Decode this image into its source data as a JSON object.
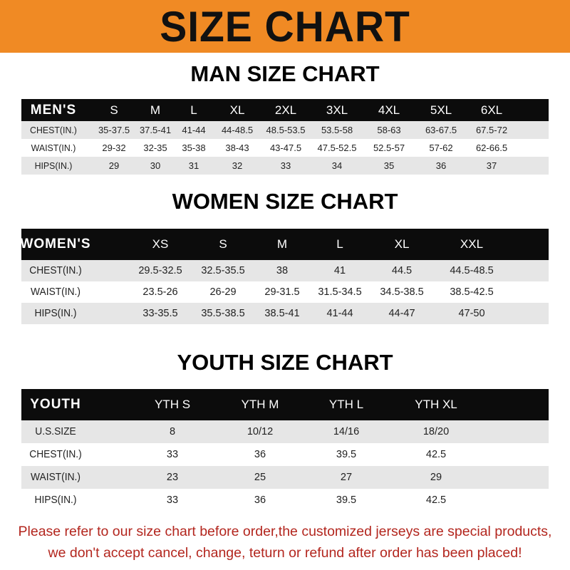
{
  "banner": {
    "title": "SIZE CHART",
    "color": "#f08a24"
  },
  "men": {
    "title": "MAN SIZE CHART",
    "headers": [
      "MEN'S",
      "S",
      "M",
      "L",
      "XL",
      "2XL",
      "3XL",
      "4XL",
      "5XL",
      "6XL"
    ],
    "rows": [
      [
        "CHEST(IN.)",
        "35-37.5",
        "37.5-41",
        "41-44",
        "44-48.5",
        "48.5-53.5",
        "53.5-58",
        "58-63",
        "63-67.5",
        "67.5-72"
      ],
      [
        "WAIST(IN.)",
        "29-32",
        "32-35",
        "35-38",
        "38-43",
        "43-47.5",
        "47.5-52.5",
        "52.5-57",
        "57-62",
        "62-66.5"
      ],
      [
        "HIPS(IN.)",
        "29",
        "30",
        "31",
        "32",
        "33",
        "34",
        "35",
        "36",
        "37"
      ]
    ]
  },
  "women": {
    "title": "WOMEN SIZE CHART",
    "headers": [
      "WOMEN'S",
      "XS",
      "S",
      "M",
      "L",
      "XL",
      "XXL"
    ],
    "rows": [
      [
        "CHEST(IN.)",
        "29.5-32.5",
        "32.5-35.5",
        "38",
        "41",
        "44.5",
        "44.5-48.5"
      ],
      [
        "WAIST(IN.)",
        "23.5-26",
        "26-29",
        "29-31.5",
        "31.5-34.5",
        "34.5-38.5",
        "38.5-42.5"
      ],
      [
        "HIPS(IN.)",
        "33-35.5",
        "35.5-38.5",
        "38.5-41",
        "41-44",
        "44-47",
        "47-50"
      ]
    ]
  },
  "youth": {
    "title": "YOUTH SIZE CHART",
    "headers": [
      "YOUTH",
      "YTH S",
      "YTH M",
      "YTH L",
      "YTH XL"
    ],
    "rows": [
      [
        "U.S.SIZE",
        "8",
        "10/12",
        "14/16",
        "18/20"
      ],
      [
        "CHEST(IN.)",
        "33",
        "36",
        "39.5",
        "42.5"
      ],
      [
        "WAIST(IN.)",
        "23",
        "25",
        "27",
        "29"
      ],
      [
        "HIPS(IN.)",
        "33",
        "36",
        "39.5",
        "42.5"
      ]
    ]
  },
  "notice": {
    "line1": "Please refer to our size chart before order,the customized jerseys are special products,",
    "line2": "we don't accept cancel, change, teturn or refund after order has been placed!",
    "color": "#b3261e"
  }
}
